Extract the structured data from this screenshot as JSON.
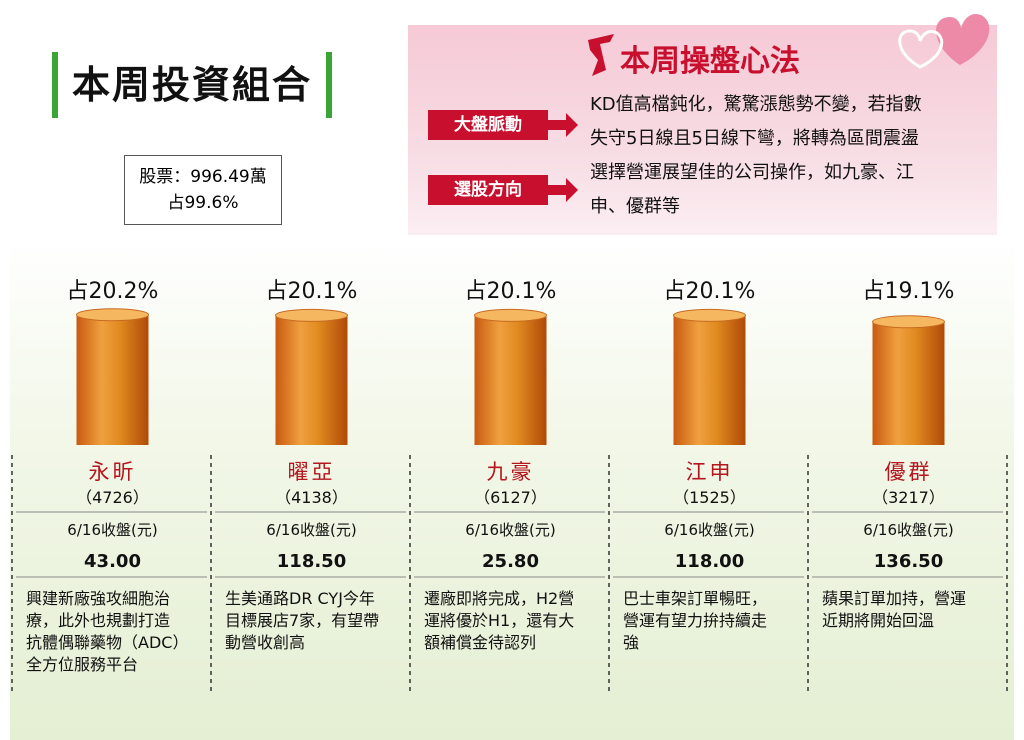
{
  "header": {
    "title": "本周投資組合"
  },
  "summary": {
    "line1": "股票：996.49萬",
    "line2": "占99.6%"
  },
  "strategy": {
    "title": "本周操盤心法",
    "items": [
      {
        "tag": "大盤脈動",
        "text_lines": [
          "KD值高檔鈍化，驚驚漲態勢不變，若指數",
          "失守5日線且5日線下彎，將轉為區間震盪"
        ]
      },
      {
        "tag": "選股方向",
        "text_lines": [
          "選擇營運展望佳的公司操作，如九豪、江",
          "申、優群等"
        ]
      }
    ]
  },
  "stocks": [
    {
      "name": "永昕",
      "code": "（4726）",
      "share": 20.2,
      "share_label": "占20.2%",
      "price_label": "6/16收盤(元)",
      "price": "43.00",
      "desc_lines": [
        "興建新廠強攻細胞治",
        "療，此外也規劃打造",
        "抗體偶聯藥物（ADC）",
        "全方位服務平台"
      ]
    },
    {
      "name": "曜亞",
      "code": "（4138）",
      "share": 20.1,
      "share_label": "占20.1%",
      "price_label": "6/16收盤(元)",
      "price": "118.50",
      "desc_lines": [
        "生美通路DR CYJ今年",
        "目標展店7家，有望帶",
        "動營收創高"
      ]
    },
    {
      "name": "九豪",
      "code": "（6127）",
      "share": 20.1,
      "share_label": "占20.1%",
      "price_label": "6/16收盤(元)",
      "price": "25.80",
      "desc_lines": [
        "遷廠即將完成，H2營",
        "運將優於H1，還有大",
        "額補償金待認列"
      ]
    },
    {
      "name": "江申",
      "code": "（1525）",
      "share": 20.1,
      "share_label": "占20.1%",
      "price_label": "6/16收盤(元)",
      "price": "118.00",
      "desc_lines": [
        "巴士車架訂單暢旺，",
        "營運有望力拚持續走",
        "強"
      ]
    },
    {
      "name": "優群",
      "code": "（3217）",
      "share": 19.1,
      "share_label": "占19.1%",
      "price_label": "6/16收盤(元)",
      "price": "136.50",
      "desc_lines": [
        "蘋果訂單加持，營運",
        "近期將開始回溫"
      ]
    }
  ]
}
